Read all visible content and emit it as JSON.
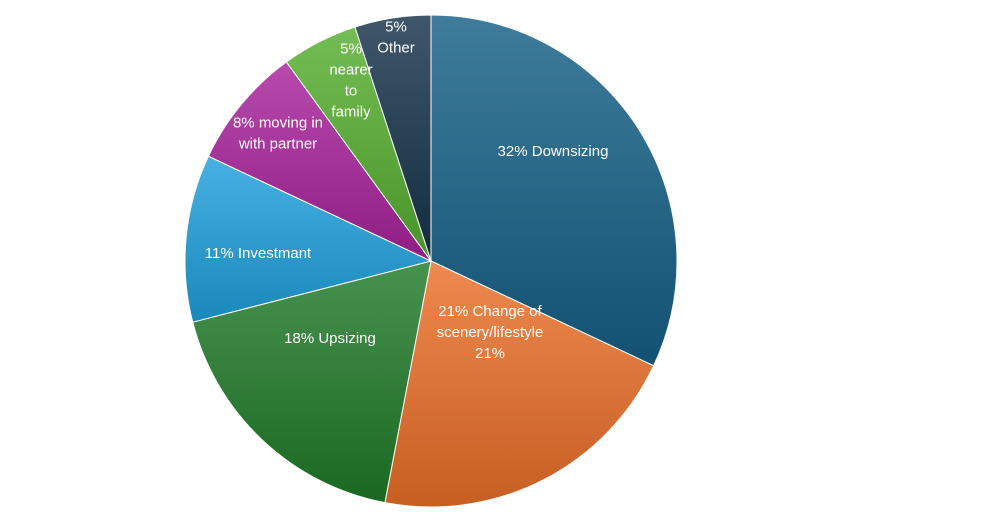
{
  "chart_data": {
    "type": "pie",
    "start_angle_deg": 0,
    "direction": "clockwise",
    "slices": [
      {
        "id": "downsizing",
        "value": 32,
        "color": "#155f86",
        "lines": [
          "32% Downsizing"
        ]
      },
      {
        "id": "change-of-scenery",
        "value": 21,
        "color": "#ea6f28",
        "lines": [
          "21% Change of",
          "scenery/lifestyle",
          "21%"
        ]
      },
      {
        "id": "upsizing",
        "value": 18,
        "color": "#1f7a28",
        "lines": [
          "18% Upsizing"
        ]
      },
      {
        "id": "investmant",
        "value": 11,
        "color": "#1fa0dc",
        "lines": [
          "11% Investmant"
        ]
      },
      {
        "id": "moving-in-with-partner",
        "value": 8,
        "color": "#a8229b",
        "lines": [
          "8% moving in",
          "with partner"
        ]
      },
      {
        "id": "nearer-to-family",
        "value": 5,
        "color": "#55ae2f",
        "lines": [
          "5%",
          "nearer",
          "to",
          "family"
        ]
      },
      {
        "id": "other",
        "value": 5,
        "color": "#16324a",
        "lines": [
          "5%",
          "Other"
        ]
      }
    ],
    "legend": "none"
  }
}
